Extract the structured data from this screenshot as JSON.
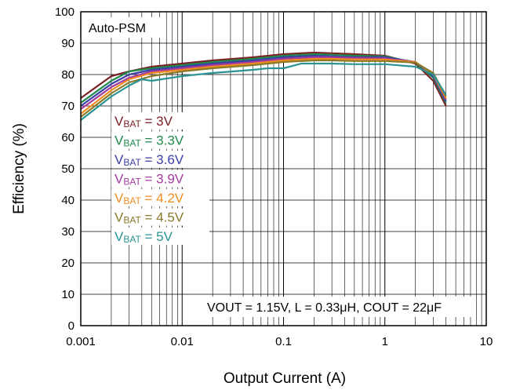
{
  "chart_data": {
    "type": "line",
    "xlabel": "Output Current (A)",
    "ylabel": "Efficiency (%)",
    "xscale": "log",
    "xlim": [
      0.001,
      10
    ],
    "ylim": [
      0,
      100
    ],
    "x_tick_labels": [
      "0.001",
      "0.01",
      "0.1",
      "1",
      "10"
    ],
    "y_tick_labels": [
      "0",
      "10",
      "20",
      "30",
      "40",
      "50",
      "60",
      "70",
      "80",
      "90",
      "100"
    ],
    "grid": true,
    "legend_placement": "middle-left",
    "annotation_mode": "Auto-PSM",
    "annotation_conditions": "VOUT = 1.15V, L = 0.33μH, COUT = 22μF",
    "series": [
      {
        "name": "VBAT = 3V",
        "legend_prefix": "V",
        "legend_sub": "BAT",
        "legend_rest": " = 3V",
        "color": "#7b2226",
        "points": [
          [
            0.001,
            72.5
          ],
          [
            0.002,
            79.5
          ],
          [
            0.003,
            81.0
          ],
          [
            0.005,
            82.5
          ],
          [
            0.01,
            83.5
          ],
          [
            0.02,
            84.5
          ],
          [
            0.05,
            85.5
          ],
          [
            0.1,
            86.5
          ],
          [
            0.2,
            87.0
          ],
          [
            0.3,
            86.8
          ],
          [
            0.5,
            86.5
          ],
          [
            1,
            86.0
          ],
          [
            2,
            83.5
          ],
          [
            3,
            78.0
          ],
          [
            4,
            70.0
          ]
        ]
      },
      {
        "name": "VBAT = 3.3V",
        "legend_prefix": "V",
        "legend_sub": "BAT",
        "legend_rest": " = 3.3V",
        "color": "#1f8a4c",
        "points": [
          [
            0.001,
            71.0
          ],
          [
            0.002,
            78.0
          ],
          [
            0.003,
            81.0
          ],
          [
            0.005,
            82.0
          ],
          [
            0.01,
            83.0
          ],
          [
            0.02,
            84.0
          ],
          [
            0.05,
            85.0
          ],
          [
            0.1,
            86.0
          ],
          [
            0.2,
            86.5
          ],
          [
            0.3,
            86.3
          ],
          [
            0.5,
            86.0
          ],
          [
            1,
            85.8
          ],
          [
            2,
            83.8
          ],
          [
            3,
            79.0
          ],
          [
            4,
            71.0
          ]
        ]
      },
      {
        "name": "VBAT = 3.6V",
        "legend_prefix": "V",
        "legend_sub": "BAT",
        "legend_rest": " = 3.6V",
        "color": "#3b3fa6",
        "points": [
          [
            0.001,
            70.0
          ],
          [
            0.002,
            77.0
          ],
          [
            0.003,
            80.0
          ],
          [
            0.005,
            81.5
          ],
          [
            0.01,
            82.5
          ],
          [
            0.02,
            83.5
          ],
          [
            0.05,
            84.5
          ],
          [
            0.1,
            85.5
          ],
          [
            0.2,
            86.0
          ],
          [
            0.3,
            85.8
          ],
          [
            0.5,
            85.5
          ],
          [
            1,
            85.5
          ],
          [
            2,
            84.0
          ],
          [
            3,
            79.5
          ],
          [
            4,
            71.5
          ]
        ]
      },
      {
        "name": "VBAT = 3.9V",
        "legend_prefix": "V",
        "legend_sub": "BAT",
        "legend_rest": " = 3.9V",
        "color": "#a23b9c",
        "points": [
          [
            0.001,
            69.0
          ],
          [
            0.002,
            76.0
          ],
          [
            0.003,
            79.0
          ],
          [
            0.005,
            81.0
          ],
          [
            0.01,
            82.0
          ],
          [
            0.02,
            83.0
          ],
          [
            0.05,
            84.0
          ],
          [
            0.1,
            85.0
          ],
          [
            0.2,
            85.5
          ],
          [
            0.3,
            85.5
          ],
          [
            0.5,
            85.3
          ],
          [
            1,
            85.2
          ],
          [
            2,
            84.0
          ],
          [
            3,
            80.0
          ],
          [
            4,
            72.0
          ]
        ]
      },
      {
        "name": "VBAT = 4.2V",
        "legend_prefix": "V",
        "legend_sub": "BAT",
        "legend_rest": " = 4.2V",
        "color": "#f28c1f",
        "points": [
          [
            0.001,
            67.5
          ],
          [
            0.002,
            75.0
          ],
          [
            0.003,
            78.5
          ],
          [
            0.005,
            80.5
          ],
          [
            0.01,
            81.5
          ],
          [
            0.02,
            82.5
          ],
          [
            0.05,
            83.5
          ],
          [
            0.1,
            84.5
          ],
          [
            0.2,
            85.0
          ],
          [
            0.3,
            85.0
          ],
          [
            0.5,
            84.8
          ],
          [
            1,
            84.8
          ],
          [
            2,
            84.0
          ],
          [
            3,
            80.0
          ],
          [
            4,
            72.5
          ]
        ]
      },
      {
        "name": "VBAT = 4.5V",
        "legend_prefix": "V",
        "legend_sub": "BAT",
        "legend_rest": " = 4.5V",
        "color": "#8a7a28",
        "points": [
          [
            0.001,
            66.5
          ],
          [
            0.002,
            74.0
          ],
          [
            0.003,
            77.5
          ],
          [
            0.005,
            79.5
          ],
          [
            0.01,
            81.0
          ],
          [
            0.02,
            82.0
          ],
          [
            0.05,
            83.0
          ],
          [
            0.1,
            84.0
          ],
          [
            0.2,
            84.5
          ],
          [
            0.3,
            84.5
          ],
          [
            0.5,
            84.3
          ],
          [
            1,
            84.3
          ],
          [
            2,
            83.8
          ],
          [
            3,
            80.5
          ],
          [
            4,
            73.0
          ]
        ]
      },
      {
        "name": "VBAT = 5V",
        "legend_prefix": "V",
        "legend_sub": "BAT",
        "legend_rest": " = 5V",
        "color": "#2a9393",
        "points": [
          [
            0.001,
            65.5
          ],
          [
            0.002,
            73.0
          ],
          [
            0.003,
            76.5
          ],
          [
            0.004,
            78.5
          ],
          [
            0.005,
            78.0
          ],
          [
            0.01,
            79.5
          ],
          [
            0.02,
            80.5
          ],
          [
            0.05,
            81.5
          ],
          [
            0.07,
            82.0
          ],
          [
            0.1,
            82.0
          ],
          [
            0.15,
            83.5
          ],
          [
            0.2,
            83.5
          ],
          [
            0.3,
            83.5
          ],
          [
            0.5,
            83.3
          ],
          [
            1,
            83.3
          ],
          [
            2,
            82.5
          ],
          [
            3,
            80.0
          ],
          [
            4,
            73.5
          ]
        ]
      }
    ]
  }
}
